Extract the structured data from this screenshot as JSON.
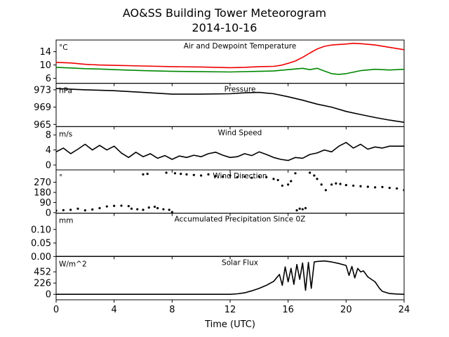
{
  "figure": {
    "title_line1": "AO&SS Building Tower Meteorogram",
    "title_line2": "2014-10-16",
    "xlabel": "Time (UTC)"
  },
  "chart_data": {
    "type": "line",
    "x_axis": {
      "range": [
        0,
        24
      ],
      "ticks": [
        0,
        4,
        8,
        12,
        16,
        20,
        24
      ],
      "label": "Time (UTC)"
    },
    "panels": [
      {
        "id": "temperature",
        "title": "Air and Dewpoint Temperature",
        "unit": "°C",
        "ylim": [
          4.5,
          17.5
        ],
        "yticks": [
          6,
          10,
          14
        ],
        "series": [
          {
            "color": "#ee0000",
            "points": [
              [
                0,
                10.8
              ],
              [
                1,
                10.6
              ],
              [
                2,
                10.2
              ],
              [
                3,
                10.0
              ],
              [
                4,
                9.9
              ],
              [
                6,
                9.7
              ],
              [
                8,
                9.5
              ],
              [
                10,
                9.4
              ],
              [
                12,
                9.2
              ],
              [
                13,
                9.3
              ],
              [
                14,
                9.5
              ],
              [
                15,
                9.6
              ],
              [
                15.5,
                9.9
              ],
              [
                16,
                10.5
              ],
              [
                16.5,
                11.2
              ],
              [
                17,
                12.3
              ],
              [
                17.5,
                13.6
              ],
              [
                18,
                14.8
              ],
              [
                18.5,
                15.6
              ],
              [
                19,
                16.0
              ],
              [
                20,
                16.3
              ],
              [
                20.5,
                16.5
              ],
              [
                21,
                16.4
              ],
              [
                22,
                16.0
              ],
              [
                23,
                15.3
              ],
              [
                24,
                14.6
              ]
            ]
          },
          {
            "color": "#008800",
            "points": [
              [
                0,
                9.3
              ],
              [
                1,
                9.1
              ],
              [
                2,
                8.9
              ],
              [
                3,
                8.8
              ],
              [
                4,
                8.6
              ],
              [
                6,
                8.3
              ],
              [
                8,
                8.1
              ],
              [
                10,
                8.0
              ],
              [
                12,
                7.9
              ],
              [
                14,
                8.1
              ],
              [
                15,
                8.2
              ],
              [
                16,
                8.6
              ],
              [
                17,
                9.0
              ],
              [
                17.5,
                8.6
              ],
              [
                18,
                9.0
              ],
              [
                18.5,
                8.2
              ],
              [
                19,
                7.4
              ],
              [
                19.5,
                7.2
              ],
              [
                20,
                7.4
              ],
              [
                21,
                8.3
              ],
              [
                22,
                8.7
              ],
              [
                23,
                8.5
              ],
              [
                24,
                8.7
              ]
            ]
          }
        ]
      },
      {
        "id": "pressure",
        "title": "Pressure",
        "unit": "hPa",
        "ylim": [
          964.5,
          974.5
        ],
        "yticks": [
          965,
          969,
          973
        ],
        "series": [
          {
            "color": "#000000",
            "points": [
              [
                0,
                973.3
              ],
              [
                2,
                973.0
              ],
              [
                4,
                972.8
              ],
              [
                6,
                972.4
              ],
              [
                8,
                972.0
              ],
              [
                10,
                972.0
              ],
              [
                12,
                972.1
              ],
              [
                13,
                972.3
              ],
              [
                14,
                972.4
              ],
              [
                15,
                972.1
              ],
              [
                16,
                971.4
              ],
              [
                17,
                970.6
              ],
              [
                18,
                969.7
              ],
              [
                19,
                969.0
              ],
              [
                20,
                968.0
              ],
              [
                21,
                967.3
              ],
              [
                22,
                966.6
              ],
              [
                23,
                966.0
              ],
              [
                24,
                965.5
              ]
            ]
          }
        ]
      },
      {
        "id": "wind_speed",
        "title": "Wind Speed",
        "unit": "m/s",
        "ylim": [
          -1.3,
          10.2
        ],
        "yticks": [
          0,
          4,
          8
        ],
        "series": [
          {
            "color": "#000000",
            "points": [
              [
                0,
                3.5
              ],
              [
                0.5,
                4.5
              ],
              [
                1,
                3.0
              ],
              [
                1.5,
                4.2
              ],
              [
                2,
                5.5
              ],
              [
                2.5,
                4.0
              ],
              [
                3,
                5.2
              ],
              [
                3.5,
                4.0
              ],
              [
                4,
                5.0
              ],
              [
                4.5,
                3.2
              ],
              [
                5,
                2.0
              ],
              [
                5.5,
                3.4
              ],
              [
                6,
                2.2
              ],
              [
                6.5,
                3.0
              ],
              [
                7,
                1.8
              ],
              [
                7.5,
                2.5
              ],
              [
                8,
                1.5
              ],
              [
                8.5,
                2.4
              ],
              [
                9,
                2.0
              ],
              [
                9.5,
                2.6
              ],
              [
                10,
                2.2
              ],
              [
                10.5,
                3.0
              ],
              [
                11,
                3.4
              ],
              [
                11.5,
                2.6
              ],
              [
                12,
                2.0
              ],
              [
                12.5,
                2.2
              ],
              [
                13,
                3.0
              ],
              [
                13.5,
                2.5
              ],
              [
                14,
                3.5
              ],
              [
                14.5,
                2.8
              ],
              [
                15,
                2.0
              ],
              [
                15.5,
                1.5
              ],
              [
                16,
                1.2
              ],
              [
                16.5,
                2.0
              ],
              [
                17,
                1.8
              ],
              [
                17.5,
                2.8
              ],
              [
                18,
                3.2
              ],
              [
                18.5,
                4.0
              ],
              [
                19,
                3.5
              ],
              [
                19.5,
                5.0
              ],
              [
                20,
                6.0
              ],
              [
                20.5,
                4.5
              ],
              [
                21,
                5.5
              ],
              [
                21.5,
                4.2
              ],
              [
                22,
                4.8
              ],
              [
                22.5,
                4.5
              ],
              [
                23,
                5.0
              ],
              [
                24,
                5.0
              ]
            ]
          }
        ]
      },
      {
        "id": "wind_direction",
        "title": "Wind Direction",
        "unit": "°",
        "ylim": [
          -5,
          380
        ],
        "yticks": [
          0,
          90,
          180,
          270
        ],
        "series": [
          {
            "color": "#000000",
            "style": "points",
            "points": [
              [
                0,
                18
              ],
              [
                0.5,
                22
              ],
              [
                1,
                25
              ],
              [
                1.5,
                35
              ],
              [
                2,
                20
              ],
              [
                2.5,
                28
              ],
              [
                3,
                40
              ],
              [
                3.5,
                55
              ],
              [
                4,
                60
              ],
              [
                4.5,
                62
              ],
              [
                5,
                58
              ],
              [
                5.2,
                35
              ],
              [
                5.6,
                30
              ],
              [
                6,
                25
              ],
              [
                6.4,
                45
              ],
              [
                6.8,
                52
              ],
              [
                7,
                40
              ],
              [
                7.4,
                30
              ],
              [
                7.8,
                25
              ],
              [
                8,
                5
              ],
              [
                6,
                340
              ],
              [
                6.3,
                345
              ],
              [
                7.6,
                355
              ],
              [
                8.2,
                350
              ],
              [
                8.6,
                345
              ],
              [
                9,
                340
              ],
              [
                9.5,
                335
              ],
              [
                10,
                330
              ],
              [
                10.5,
                340
              ],
              [
                11,
                325
              ],
              [
                11.5,
                320
              ],
              [
                12,
                330
              ],
              [
                12.5,
                315
              ],
              [
                13,
                320
              ],
              [
                13.5,
                310
              ],
              [
                14,
                320
              ],
              [
                14.5,
                315
              ],
              [
                15,
                300
              ],
              [
                15.3,
                290
              ],
              [
                15.6,
                240
              ],
              [
                16,
                250
              ],
              [
                16.2,
                280
              ],
              [
                16.5,
                350
              ],
              [
                16.6,
                20
              ],
              [
                16.8,
                35
              ],
              [
                17,
                30
              ],
              [
                17.2,
                40
              ],
              [
                17.5,
                355
              ],
              [
                17.8,
                330
              ],
              [
                18,
                300
              ],
              [
                18.3,
                250
              ],
              [
                18.6,
                200
              ],
              [
                19,
                250
              ],
              [
                19.3,
                260
              ],
              [
                19.6,
                255
              ],
              [
                20,
                245
              ],
              [
                20.5,
                240
              ],
              [
                21,
                235
              ],
              [
                21.5,
                230
              ],
              [
                22,
                225
              ],
              [
                22.5,
                228
              ],
              [
                23,
                220
              ],
              [
                23.5,
                215
              ],
              [
                24,
                200
              ]
            ]
          }
        ]
      },
      {
        "id": "precipitation",
        "title": "Accumulated Precipitation Since 0Z",
        "unit": "mm",
        "ylim": [
          0,
          0.16
        ],
        "yticks": [
          0.0,
          0.05,
          0.1
        ],
        "ytick_labels": [
          "0.00",
          "0.05",
          "0.10"
        ],
        "series": [
          {
            "color": "#000000",
            "points": [
              [
                0,
                0
              ],
              [
                24,
                0
              ]
            ]
          }
        ]
      },
      {
        "id": "solar_flux",
        "title": "Solar Flux",
        "unit": "W/m^2",
        "ylim": [
          -110,
          760
        ],
        "yticks": [
          0,
          226,
          452
        ],
        "series": [
          {
            "color": "#000000",
            "points": [
              [
                0,
                0
              ],
              [
                12,
                0
              ],
              [
                12.5,
                10
              ],
              [
                13,
                30
              ],
              [
                13.5,
                70
              ],
              [
                14,
                120
              ],
              [
                14.5,
                180
              ],
              [
                15,
                260
              ],
              [
                15.4,
                400
              ],
              [
                15.6,
                180
              ],
              [
                15.8,
                550
              ],
              [
                16,
                250
              ],
              [
                16.2,
                520
              ],
              [
                16.4,
                200
              ],
              [
                16.6,
                600
              ],
              [
                16.8,
                300
              ],
              [
                17,
                630
              ],
              [
                17.2,
                80
              ],
              [
                17.4,
                640
              ],
              [
                17.6,
                120
              ],
              [
                17.8,
                650
              ],
              [
                18,
                660
              ],
              [
                18.5,
                670
              ],
              [
                19,
                650
              ],
              [
                19.5,
                620
              ],
              [
                20,
                580
              ],
              [
                20.2,
                380
              ],
              [
                20.4,
                560
              ],
              [
                20.6,
                330
              ],
              [
                20.8,
                520
              ],
              [
                21,
                450
              ],
              [
                21.2,
                470
              ],
              [
                21.5,
                350
              ],
              [
                22,
                250
              ],
              [
                22.3,
                120
              ],
              [
                22.5,
                60
              ],
              [
                23,
                15
              ],
              [
                23.5,
                5
              ],
              [
                24,
                0
              ]
            ]
          }
        ]
      }
    ]
  }
}
